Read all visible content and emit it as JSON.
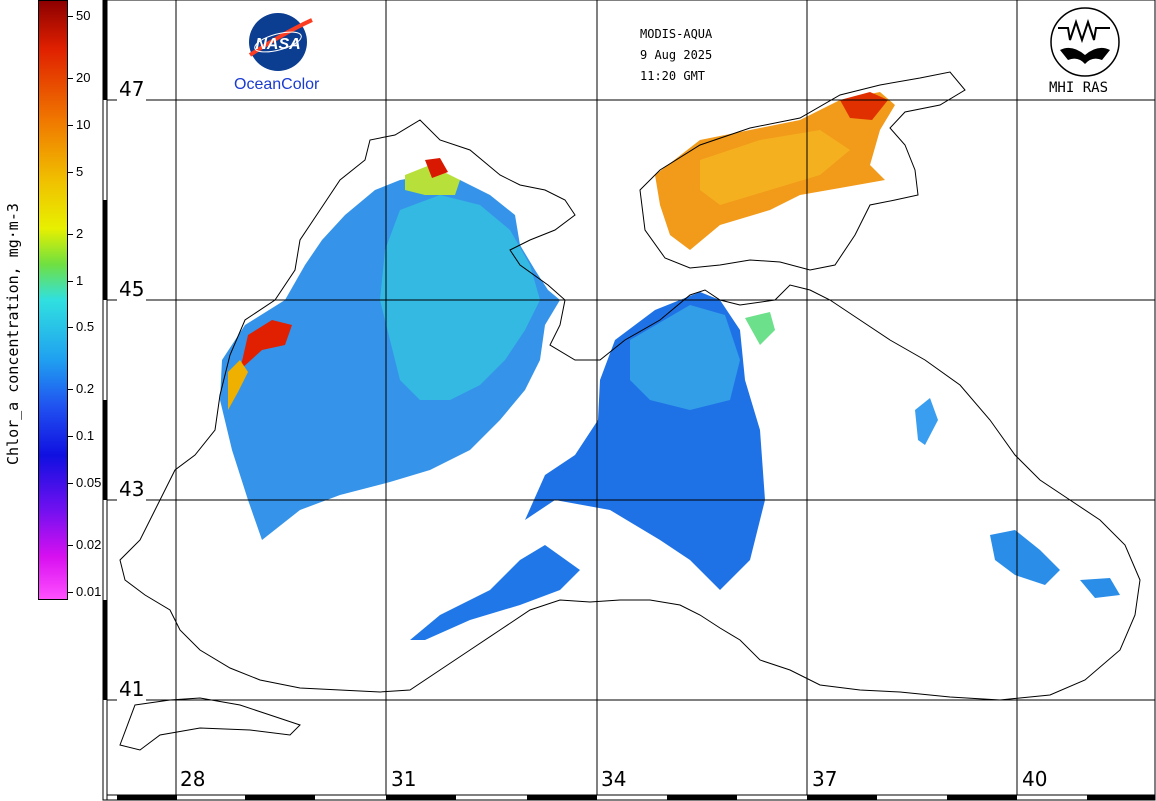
{
  "header": {
    "sensor": "MODIS-AQUA",
    "date": "9 Aug 2025",
    "time": "11:20 GMT"
  },
  "logos": {
    "nasa": "NASA",
    "oceancolor": "OceanColor",
    "mhi": "MHI RAS"
  },
  "colorbar": {
    "label": "Chlor_a concentration, mg·m-3",
    "scale": "log",
    "range": [
      0.01,
      50
    ],
    "ticks": [
      "50",
      "20",
      "10",
      "5",
      "2",
      "1",
      "0.5",
      "0.2",
      "0.1",
      "0.05",
      "0.02",
      "0.01"
    ],
    "colors": [
      "#a00000",
      "#e02000",
      "#f07000",
      "#f0b000",
      "#e8e800",
      "#60e040",
      "#30e0e0",
      "#20a0f0",
      "#2050f0",
      "#1010e0",
      "#7010f0",
      "#e010f0",
      "#ff40ff"
    ]
  },
  "map": {
    "latitudes": [
      "47",
      "45",
      "43",
      "41"
    ],
    "longitudes": [
      "28",
      "31",
      "34",
      "37",
      "40"
    ],
    "grid": true,
    "land_color": "#ffffff",
    "coast_color": "#000000"
  }
}
